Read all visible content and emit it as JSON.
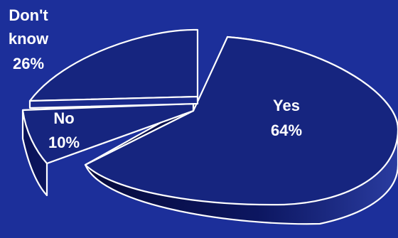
{
  "chart_data": {
    "type": "pie",
    "title": "",
    "slices": [
      {
        "label": "Yes",
        "value": 64,
        "value_label": "64%"
      },
      {
        "label": "No",
        "value": 10,
        "value_label": "10%"
      },
      {
        "label": "Don't know",
        "value": 26,
        "value_label": "26%"
      }
    ],
    "legend": "none",
    "exploded": true,
    "style": "3d"
  },
  "colors": {
    "background": "#1c2f9a",
    "slice_fill": "#16257f",
    "outline": "#ffffff",
    "side_dark": "#060b3c",
    "side_light": "#2a3ca0",
    "label": "#ffffff"
  }
}
